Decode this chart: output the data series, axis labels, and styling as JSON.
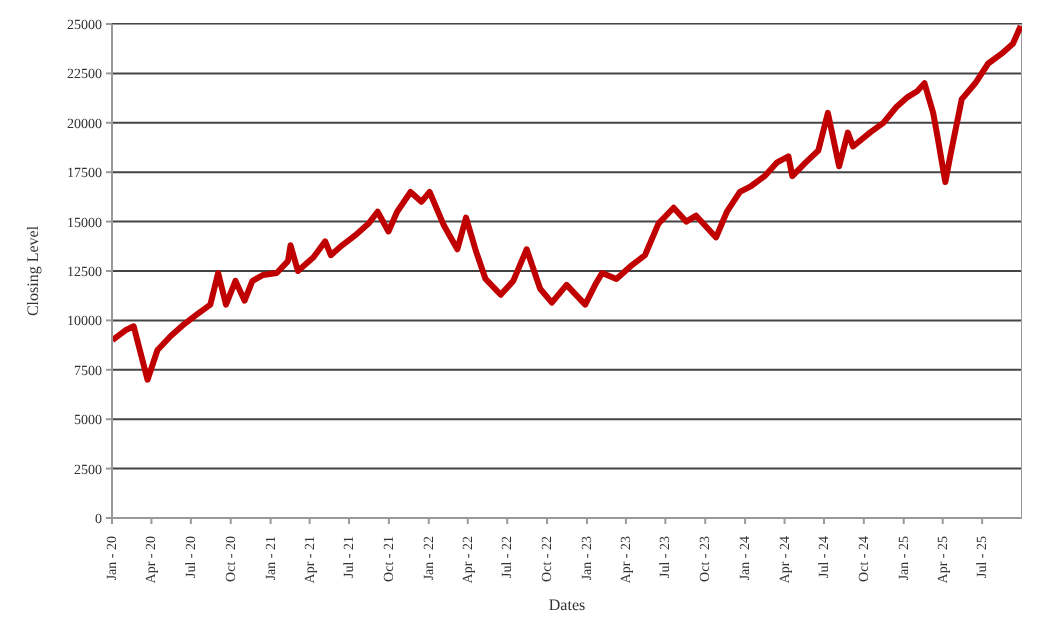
{
  "chart_data": {
    "type": "line",
    "xlabel": "Dates",
    "ylabel": "Closing Level",
    "x": [
      "2020-01-02",
      "2020-02-01",
      "2020-02-20",
      "2020-03-23",
      "2020-04-15",
      "2020-05-15",
      "2020-06-15",
      "2020-07-15",
      "2020-08-15",
      "2020-09-02",
      "2020-09-20",
      "2020-10-12",
      "2020-11-02",
      "2020-11-20",
      "2020-12-15",
      "2021-01-15",
      "2021-02-10",
      "2021-02-16",
      "2021-03-05",
      "2021-04-10",
      "2021-05-07",
      "2021-05-20",
      "2021-06-15",
      "2021-07-15",
      "2021-08-15",
      "2021-09-05",
      "2021-09-30",
      "2021-10-20",
      "2021-11-20",
      "2021-12-15",
      "2022-01-03",
      "2022-02-05",
      "2022-03-08",
      "2022-03-28",
      "2022-04-20",
      "2022-05-12",
      "2022-06-16",
      "2022-07-15",
      "2022-08-15",
      "2022-09-15",
      "2022-10-12",
      "2022-11-15",
      "2022-12-28",
      "2023-01-20",
      "2023-02-05",
      "2023-03-10",
      "2023-04-15",
      "2023-05-15",
      "2023-06-15",
      "2023-07-20",
      "2023-08-18",
      "2023-09-10",
      "2023-10-26",
      "2023-11-20",
      "2023-12-20",
      "2024-01-15",
      "2024-02-15",
      "2024-03-15",
      "2024-04-10",
      "2024-04-19",
      "2024-05-20",
      "2024-06-18",
      "2024-07-10",
      "2024-08-05",
      "2024-08-25",
      "2024-09-06",
      "2024-10-15",
      "2024-11-15",
      "2024-12-15",
      "2025-01-10",
      "2025-02-01",
      "2025-02-18",
      "2025-03-10",
      "2025-03-20",
      "2025-04-07",
      "2025-04-20",
      "2025-05-15",
      "2025-06-15",
      "2025-07-15",
      "2025-08-15",
      "2025-09-10",
      "2025-09-28"
    ],
    "series": [
      {
        "color": "#c00000",
        "values": [
          9000,
          9500,
          9700,
          7000,
          8500,
          9200,
          9800,
          10300,
          10800,
          12400,
          10800,
          12000,
          11000,
          12000,
          12300,
          12400,
          13000,
          13800,
          12500,
          13200,
          14000,
          13300,
          13800,
          14300,
          14900,
          15500,
          14500,
          15500,
          16500,
          16000,
          16500,
          14800,
          13600,
          15200,
          13500,
          12100,
          11300,
          12000,
          13600,
          11600,
          10900,
          11800,
          10800,
          11800,
          12400,
          12100,
          12800,
          13300,
          14900,
          15700,
          15000,
          15300,
          14200,
          15500,
          16500,
          16800,
          17300,
          18000,
          18300,
          17300,
          18000,
          18600,
          20500,
          17800,
          19500,
          18800,
          19500,
          20000,
          20800,
          21300,
          21600,
          22000,
          20500,
          19300,
          17000,
          18500,
          21200,
          22000,
          23000,
          23500,
          24000,
          24900
        ]
      }
    ],
    "xlim": [
      "2020-01-01",
      "2025-10-01"
    ],
    "xticks": [
      {
        "value": "2020-01-01",
        "label": "Jan - 20"
      },
      {
        "value": "2020-04-01",
        "label": "Apr - 20"
      },
      {
        "value": "2020-07-01",
        "label": "Jul - 20"
      },
      {
        "value": "2020-10-01",
        "label": "Oct - 20"
      },
      {
        "value": "2021-01-01",
        "label": "Jan - 21"
      },
      {
        "value": "2021-04-01",
        "label": "Apr - 21"
      },
      {
        "value": "2021-07-01",
        "label": "Jul - 21"
      },
      {
        "value": "2021-10-01",
        "label": "Oct - 21"
      },
      {
        "value": "2022-01-01",
        "label": "Jan - 22"
      },
      {
        "value": "2022-04-01",
        "label": "Apr - 22"
      },
      {
        "value": "2022-07-01",
        "label": "Jul - 22"
      },
      {
        "value": "2022-10-01",
        "label": "Oct - 22"
      },
      {
        "value": "2023-01-01",
        "label": "Jan - 23"
      },
      {
        "value": "2023-04-01",
        "label": "Apr - 23"
      },
      {
        "value": "2023-07-01",
        "label": "Jul - 23"
      },
      {
        "value": "2023-10-01",
        "label": "Oct - 23"
      },
      {
        "value": "2024-01-01",
        "label": "Jan - 24"
      },
      {
        "value": "2024-04-01",
        "label": "Apr - 24"
      },
      {
        "value": "2024-07-01",
        "label": "Jul - 24"
      },
      {
        "value": "2024-10-01",
        "label": "Oct - 24"
      },
      {
        "value": "2025-01-01",
        "label": "Jan - 25"
      },
      {
        "value": "2025-04-01",
        "label": "Apr - 25"
      },
      {
        "value": "2025-07-01",
        "label": "Jul - 25"
      }
    ],
    "ylim": [
      0,
      25000
    ],
    "yticks": [
      0,
      2500,
      5000,
      7500,
      10000,
      12500,
      15000,
      17500,
      20000,
      22500,
      25000
    ],
    "grid": "y",
    "marker": "none",
    "line_style": "solid"
  }
}
